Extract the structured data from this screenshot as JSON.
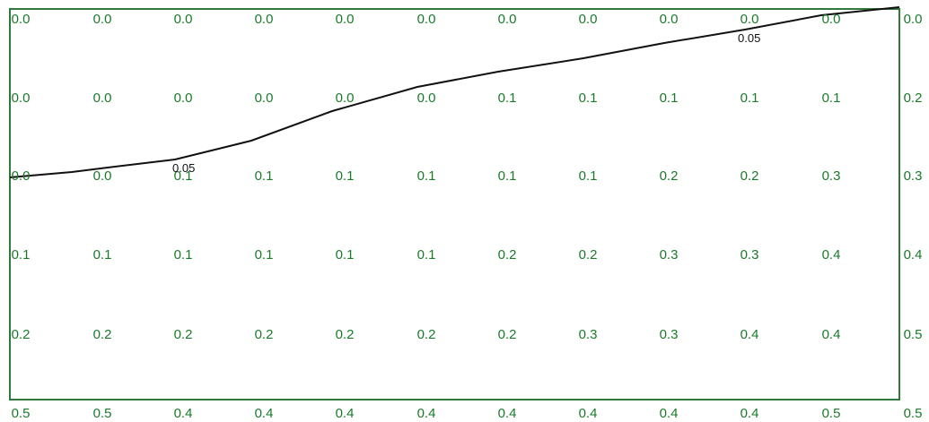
{
  "colors": {
    "value_text": "#1a7a2a",
    "contour_line": "#111111",
    "frame": "#2f7a3a",
    "background": "#ffffff"
  },
  "grid": {
    "rows": [
      [
        "0.0",
        "0.0",
        "0.0",
        "0.0",
        "0.0",
        "0.0",
        "0.0",
        "0.0",
        "0.0",
        "0.0",
        "0.0",
        "0.0"
      ],
      [
        "0.0",
        "0.0",
        "0.0",
        "0.0",
        "0.0",
        "0.0",
        "0.1",
        "0.1",
        "0.1",
        "0.1",
        "0.1",
        "0.2"
      ],
      [
        "0.0",
        "0.0",
        "0.1",
        "0.1",
        "0.1",
        "0.1",
        "0.1",
        "0.1",
        "0.2",
        "0.2",
        "0.3",
        "0.3"
      ],
      [
        "0.1",
        "0.1",
        "0.1",
        "0.1",
        "0.1",
        "0.1",
        "0.2",
        "0.2",
        "0.3",
        "0.3",
        "0.4",
        "0.4"
      ],
      [
        "0.2",
        "0.2",
        "0.2",
        "0.2",
        "0.2",
        "0.2",
        "0.2",
        "0.3",
        "0.3",
        "0.4",
        "0.4",
        "0.5"
      ],
      [
        "0.5",
        "0.5",
        "0.4",
        "0.4",
        "0.4",
        "0.4",
        "0.4",
        "0.4",
        "0.4",
        "0.4",
        "0.5",
        "0.5"
      ]
    ]
  },
  "contour": {
    "level": 0.05,
    "labels": [
      "0.05",
      "0.05"
    ]
  }
}
